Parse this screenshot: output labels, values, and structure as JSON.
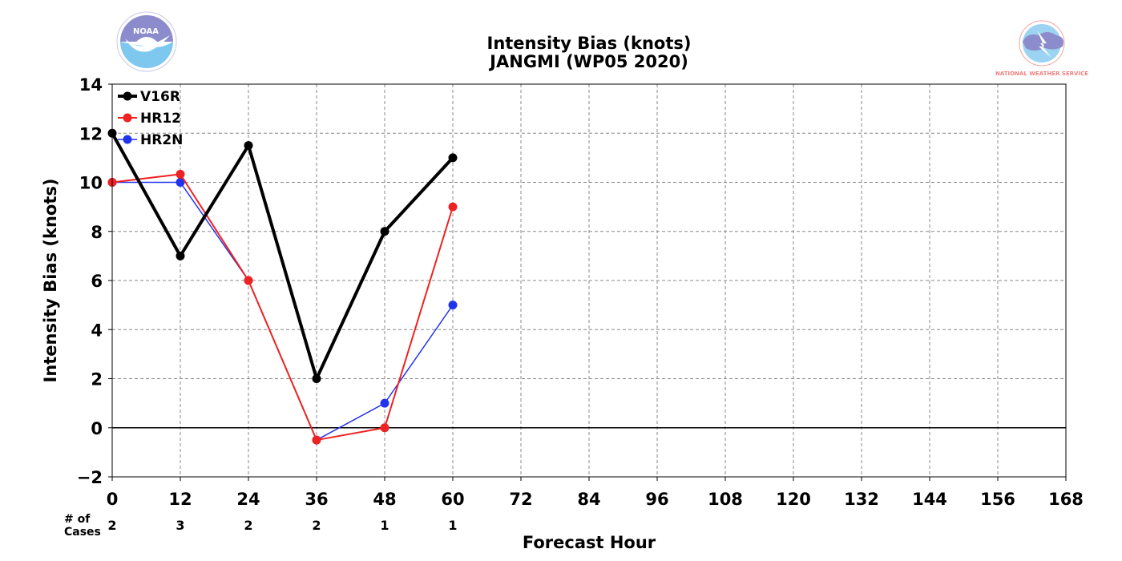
{
  "chart_data": {
    "type": "line",
    "title": "Intensity Bias (knots)",
    "subtitle": "JANGMI (WP05 2020)",
    "xlabel": "Forecast Hour",
    "ylabel": "Intensity Bias (knots)",
    "xlim": [
      0,
      168
    ],
    "ylim": [
      -2,
      14
    ],
    "xticks": [
      0,
      12,
      24,
      36,
      48,
      60,
      72,
      84,
      96,
      108,
      120,
      132,
      144,
      156,
      168
    ],
    "yticks": [
      -2,
      0,
      2,
      4,
      6,
      8,
      10,
      12,
      14
    ],
    "ytick_labels": [
      "−2",
      "0",
      "2",
      "4",
      "6",
      "8",
      "10",
      "12",
      "14"
    ],
    "grid": true,
    "legend_position": "top-left",
    "zero_line": 0,
    "cases_label": [
      "# of",
      "Cases"
    ],
    "cases": [
      {
        "hour": 0,
        "count": "2"
      },
      {
        "hour": 12,
        "count": "3"
      },
      {
        "hour": 24,
        "count": "2"
      },
      {
        "hour": 36,
        "count": "2"
      },
      {
        "hour": 48,
        "count": "1"
      },
      {
        "hour": 60,
        "count": "1"
      }
    ],
    "series": [
      {
        "name": "V16R",
        "color": "#000000",
        "width": 4,
        "marker": 5.5,
        "x": [
          0,
          12,
          24,
          36,
          48,
          60
        ],
        "y": [
          12,
          7,
          11.5,
          2,
          8,
          11
        ]
      },
      {
        "name": "HR12",
        "color": "#ee2222",
        "width": 2,
        "marker": 5.5,
        "x": [
          0,
          12,
          24,
          36,
          48,
          60
        ],
        "y": [
          10,
          10.33,
          6,
          -0.5,
          0,
          9
        ]
      },
      {
        "name": "HR2N",
        "color": "#2233ee",
        "width": 1.5,
        "marker": 5.5,
        "x": [
          0,
          12,
          24,
          36,
          48,
          60
        ],
        "y": [
          10,
          10,
          6,
          -0.5,
          1,
          5
        ]
      }
    ]
  },
  "logos": {
    "noaa": {
      "name": "noaa-logo",
      "text": "NOAA",
      "color_dark": "#8080c8",
      "color_light": "#7ec8f0"
    },
    "nws": {
      "name": "nws-logo",
      "text": "NATIONAL WEATHER SERVICE",
      "color_text": "#f08080",
      "color_fill": "#88c8f0"
    }
  }
}
